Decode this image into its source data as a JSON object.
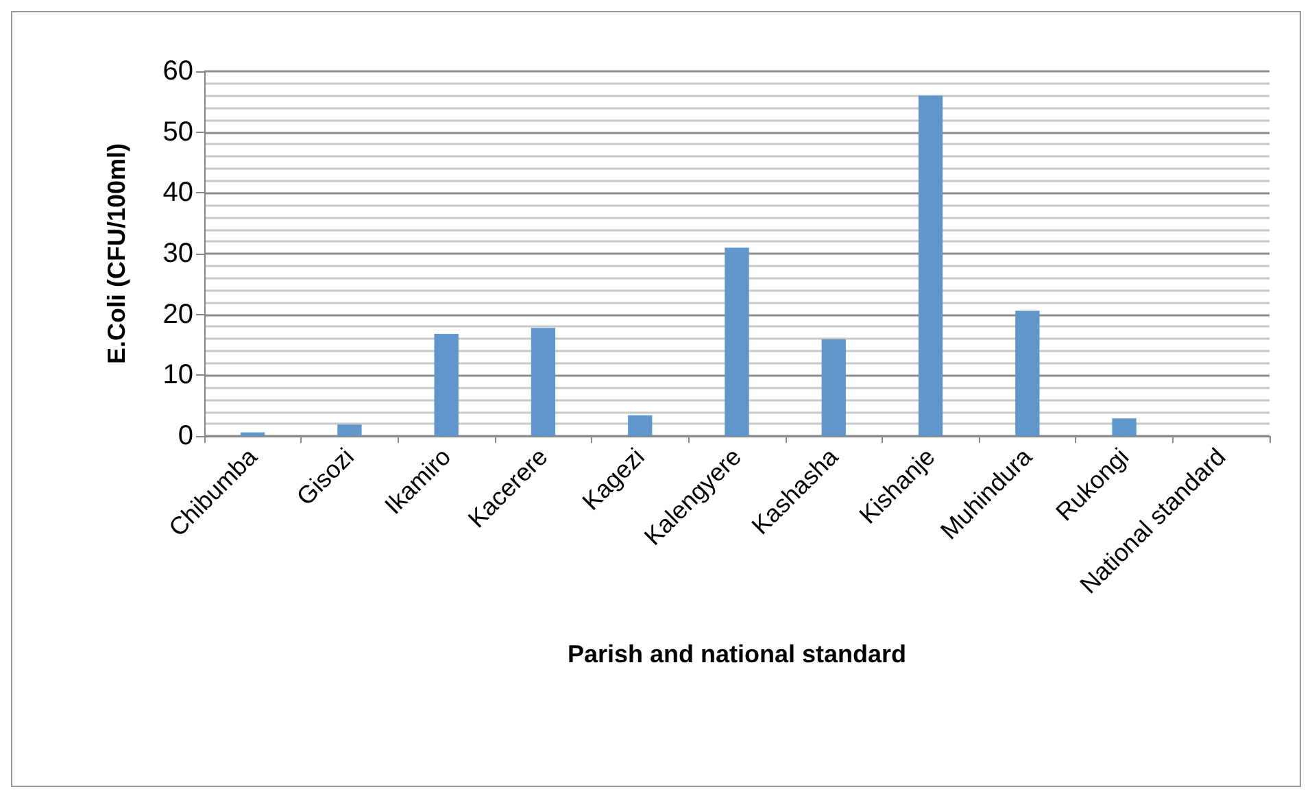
{
  "chart_data": {
    "type": "bar",
    "xlabel": "Parish and national standard",
    "ylabel": "E.Coli (CFU/100ml)",
    "categories": [
      "Chibumba",
      "Gisozi",
      "Ikamiro",
      "Kacerere",
      "Kagezi",
      "Kalengyere",
      "Kashasha",
      "Kishanje",
      "Muhindura",
      "Rukongi",
      "National standard"
    ],
    "values": [
      0.6,
      1.9,
      16.8,
      17.8,
      3.4,
      31,
      15.9,
      56,
      20.6,
      2.9,
      0
    ],
    "color": "#5f96cc",
    "ylim": [
      0,
      60
    ],
    "yticks": [
      0,
      10,
      20,
      30,
      40,
      50,
      60
    ],
    "grid": "y"
  }
}
